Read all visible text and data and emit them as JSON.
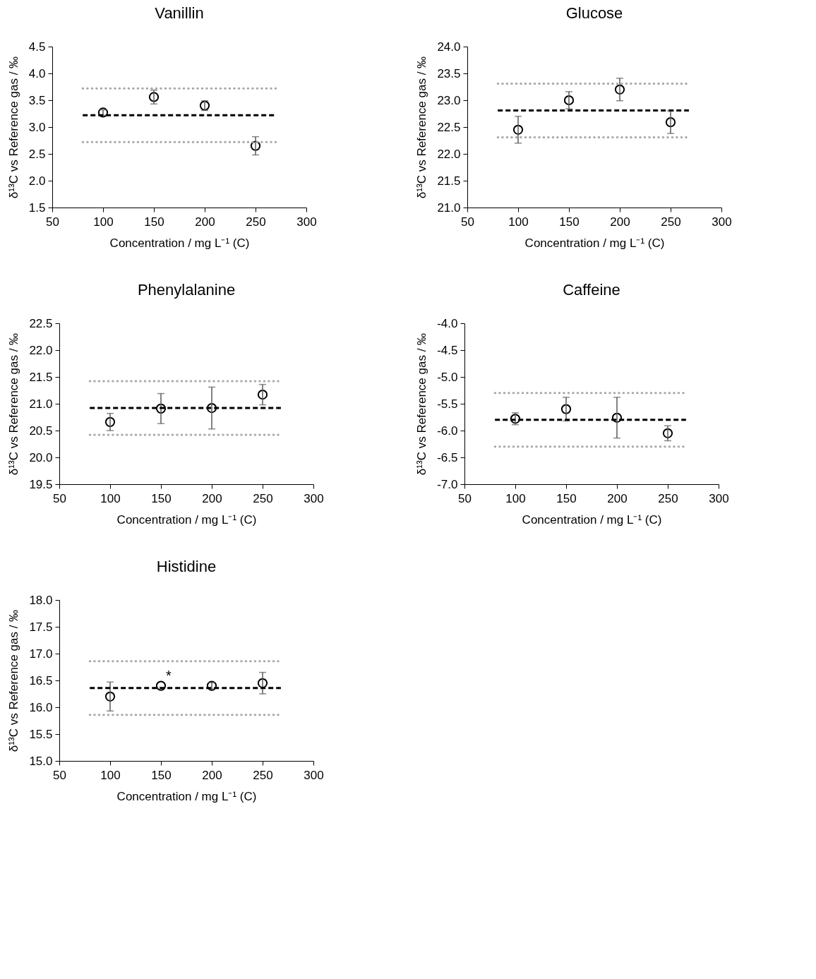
{
  "chart_data": [
    {
      "type": "scatter",
      "title": "Vanillin",
      "xlabel": "Concentration / mg L⁻¹ (C)",
      "ylabel": "δ¹³C vs Reference gas / ‰",
      "xlim": [
        50,
        300
      ],
      "xticks": [
        50,
        100,
        150,
        200,
        250,
        300
      ],
      "ylim": [
        1.5,
        4.5
      ],
      "yticks": [
        1.5,
        {
          "value": 2,
          "label": "2.0"
        },
        2.5,
        {
          "value": 3,
          "label": "3.0"
        },
        3.5,
        {
          "value": 4,
          "label": "4.0"
        },
        4.5
      ],
      "grid": false,
      "series": [
        {
          "type": "scatter",
          "marker": "circle",
          "color": "#000000",
          "x": [
            100,
            150,
            200,
            250
          ],
          "values": [
            3.27,
            3.56,
            3.4,
            2.65
          ],
          "errors": [
            0.05,
            0.13,
            0.09,
            0.17
          ]
        },
        {
          "type": "line",
          "color": "#000000",
          "line_style": "dashed",
          "x": [
            80,
            270
          ],
          "values": [
            3.22,
            3.22
          ]
        },
        {
          "type": "line",
          "color": "#a6a6a6",
          "line_style": "dotted",
          "x": [
            80,
            270
          ],
          "values": [
            3.72,
            3.72
          ]
        },
        {
          "type": "line",
          "color": "#a6a6a6",
          "line_style": "dotted",
          "x": [
            80,
            270
          ],
          "values": [
            2.72,
            2.72
          ]
        }
      ]
    },
    {
      "type": "scatter",
      "title": "Glucose",
      "xlabel": "Concentration / mg L⁻¹ (C)",
      "ylabel": "δ¹³C vs Reference gas / ‰",
      "xlim": [
        50,
        300
      ],
      "xticks": [
        50,
        100,
        150,
        200,
        250,
        300
      ],
      "ylim": [
        21.0,
        24.0
      ],
      "yticks": [
        {
          "value": 21,
          "label": "21.0"
        },
        21.5,
        {
          "value": 22,
          "label": "22.0"
        },
        22.5,
        {
          "value": 23,
          "label": "23.0"
        },
        23.5,
        {
          "value": 24,
          "label": "24.0"
        }
      ],
      "grid": false,
      "series": [
        {
          "type": "scatter",
          "marker": "circle",
          "color": "#000000",
          "x": [
            100,
            150,
            200,
            250
          ],
          "values": [
            22.45,
            23.0,
            23.2,
            22.59
          ],
          "errors": [
            0.25,
            0.16,
            0.21,
            0.21
          ]
        },
        {
          "type": "line",
          "color": "#000000",
          "line_style": "dashed",
          "x": [
            80,
            268
          ],
          "values": [
            22.81,
            22.81
          ]
        },
        {
          "type": "line",
          "color": "#a6a6a6",
          "line_style": "dotted",
          "x": [
            80,
            268
          ],
          "values": [
            23.31,
            23.31
          ]
        },
        {
          "type": "line",
          "color": "#a6a6a6",
          "line_style": "dotted",
          "x": [
            80,
            268
          ],
          "values": [
            22.31,
            22.31
          ]
        }
      ]
    },
    {
      "type": "scatter",
      "title": "Phenylalanine",
      "xlabel": "Concentration / mg L⁻¹ (C)",
      "ylabel": "δ¹³C vs Reference gas / ‰",
      "xlim": [
        50,
        300
      ],
      "xticks": [
        50,
        100,
        150,
        200,
        250,
        300
      ],
      "ylim": [
        19.5,
        22.5
      ],
      "yticks": [
        19.5,
        {
          "value": 20,
          "label": "20.0"
        },
        20.5,
        {
          "value": 21,
          "label": "21.0"
        },
        21.5,
        {
          "value": 22,
          "label": "22.0"
        },
        22.5
      ],
      "grid": false,
      "series": [
        {
          "type": "scatter",
          "marker": "circle",
          "color": "#000000",
          "x": [
            100,
            150,
            200,
            250
          ],
          "values": [
            20.66,
            20.91,
            20.92,
            21.17
          ],
          "errors": [
            0.16,
            0.28,
            0.39,
            0.19
          ]
        },
        {
          "type": "line",
          "color": "#000000",
          "line_style": "dashed",
          "x": [
            80,
            268
          ],
          "values": [
            20.92,
            20.92
          ]
        },
        {
          "type": "line",
          "color": "#a6a6a6",
          "line_style": "dotted",
          "x": [
            80,
            268
          ],
          "values": [
            21.42,
            21.42
          ]
        },
        {
          "type": "line",
          "color": "#a6a6a6",
          "line_style": "dotted",
          "x": [
            80,
            268
          ],
          "values": [
            20.42,
            20.42
          ]
        }
      ]
    },
    {
      "type": "scatter",
      "title": "Caffeine",
      "xlabel": "Concentration / mg L⁻¹ (C)",
      "ylabel": "δ¹³C vs Reference gas / ‰",
      "xlim": [
        50,
        300
      ],
      "xticks": [
        50,
        100,
        150,
        200,
        250,
        300
      ],
      "ylim": [
        -7.0,
        -4.0
      ],
      "yticks": [
        {
          "value": -7,
          "label": "-7.0"
        },
        -6.5,
        {
          "value": -6,
          "label": "-6.0"
        },
        -5.5,
        {
          "value": -5,
          "label": "-5.0"
        },
        -4.5,
        {
          "value": -4,
          "label": "-4.0"
        }
      ],
      "grid": false,
      "series": [
        {
          "type": "scatter",
          "marker": "circle",
          "color": "#000000",
          "x": [
            100,
            150,
            200,
            250
          ],
          "values": [
            -5.78,
            -5.6,
            -5.76,
            -6.05
          ],
          "errors": [
            0.11,
            0.22,
            0.38,
            0.14
          ]
        },
        {
          "type": "line",
          "color": "#000000",
          "line_style": "dashed",
          "x": [
            80,
            268
          ],
          "values": [
            -5.8,
            -5.8
          ]
        },
        {
          "type": "line",
          "color": "#a6a6a6",
          "line_style": "dotted",
          "x": [
            80,
            268
          ],
          "values": [
            -5.3,
            -5.3
          ]
        },
        {
          "type": "line",
          "color": "#a6a6a6",
          "line_style": "dotted",
          "x": [
            80,
            268
          ],
          "values": [
            -6.3,
            -6.3
          ]
        }
      ]
    },
    {
      "type": "scatter",
      "title": "Histidine",
      "xlabel": "Concentration / mg L⁻¹ (C)",
      "ylabel": "δ¹³C vs Reference gas / ‰",
      "xlim": [
        50,
        300
      ],
      "xticks": [
        50,
        100,
        150,
        200,
        250,
        300
      ],
      "ylim": [
        15.0,
        18.0
      ],
      "yticks": [
        {
          "value": 15,
          "label": "15.0"
        },
        15.5,
        {
          "value": 16,
          "label": "16.0"
        },
        16.5,
        {
          "value": 17,
          "label": "17.0"
        },
        17.5,
        {
          "value": 18,
          "label": "18.0"
        }
      ],
      "grid": false,
      "annotations": [
        {
          "text": "*",
          "x": 150,
          "y": 16.4
        }
      ],
      "series": [
        {
          "type": "scatter",
          "marker": "circle",
          "color": "#000000",
          "x": [
            100,
            150,
            200,
            250
          ],
          "values": [
            16.2,
            16.4,
            16.4,
            16.45
          ],
          "errors": [
            0.27,
            null,
            0.06,
            0.2
          ]
        },
        {
          "type": "line",
          "color": "#000000",
          "line_style": "dashed",
          "x": [
            80,
            268
          ],
          "values": [
            16.36,
            16.36
          ]
        },
        {
          "type": "line",
          "color": "#a6a6a6",
          "line_style": "dotted",
          "x": [
            80,
            268
          ],
          "values": [
            16.86,
            16.86
          ]
        },
        {
          "type": "line",
          "color": "#a6a6a6",
          "line_style": "dotted",
          "x": [
            80,
            268
          ],
          "values": [
            15.86,
            15.86
          ]
        }
      ]
    }
  ]
}
